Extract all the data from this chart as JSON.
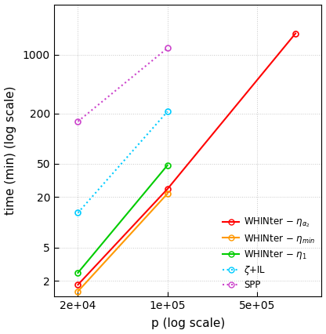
{
  "xlabel": "p (log scale)",
  "ylabel": "time (min) (log scale)",
  "background_color": "#ffffff",
  "grid_color": "#b0b0b0",
  "series": [
    {
      "label_latex": "WHINter $-$ $\\eta_{\\alpha_2}$",
      "x": [
        20000,
        100000,
        1000000
      ],
      "y": [
        1.8,
        25,
        1800
      ],
      "color": "#ff0000",
      "linestyle": "-",
      "marker": "o",
      "linewidth": 1.5
    },
    {
      "label_latex": "WHINter $-$ $\\eta_{min}$",
      "x": [
        20000,
        100000
      ],
      "y": [
        1.5,
        22
      ],
      "color": "#ff9900",
      "linestyle": "-",
      "marker": "o",
      "linewidth": 1.5
    },
    {
      "label_latex": "WHINter $-$ $\\eta_1$",
      "x": [
        20000,
        100000
      ],
      "y": [
        2.5,
        48
      ],
      "color": "#00cc00",
      "linestyle": "-",
      "marker": "o",
      "linewidth": 1.5
    },
    {
      "label_latex": "$\\zeta$+IL",
      "x": [
        20000,
        100000
      ],
      "y": [
        13,
        210
      ],
      "color": "#00ccff",
      "linestyle": ":",
      "marker": "o",
      "linewidth": 1.5
    },
    {
      "label_latex": "SPP",
      "x": [
        20000,
        100000
      ],
      "y": [
        160,
        1200
      ],
      "color": "#cc44cc",
      "linestyle": ":",
      "marker": "o",
      "linewidth": 1.5
    }
  ],
  "xlim": [
    13000,
    1600000
  ],
  "ylim": [
    1.3,
    4000
  ],
  "xticks": [
    20000,
    100000,
    500000
  ],
  "xtick_labels": [
    "2e+04",
    "1e+05",
    "5e+05"
  ],
  "yticks": [
    2,
    5,
    20,
    50,
    200,
    1000
  ],
  "ytick_labels": [
    "2",
    "5",
    "20",
    "50",
    "200",
    "1000"
  ],
  "legend_loc": "lower right",
  "legend_fontsize": 8.5,
  "tick_labelsize": 10,
  "axis_labelsize": 11,
  "marker_size": 5
}
